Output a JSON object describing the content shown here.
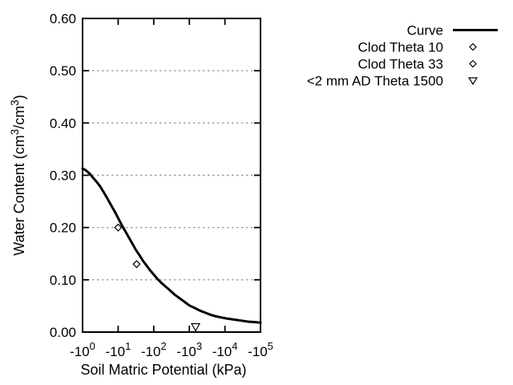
{
  "colors": {
    "background": "#ffffff",
    "foreground": "#000000",
    "grid": "#9e9e9e",
    "curve": "#000000",
    "marker_fill": "#ffffff"
  },
  "chart_data": {
    "type": "line",
    "title": "",
    "xlabel": "Soil Matric Potential (kPa)",
    "ylabel": "Water Content (cm3/cm3)",
    "ylabel_parts": [
      {
        "t": "Water Content (cm"
      },
      {
        "t": "3",
        "sup": true
      },
      {
        "t": "/cm"
      },
      {
        "t": "3",
        "sup": true
      },
      {
        "t": ")"
      }
    ],
    "x_scale": "negative-log10",
    "xlim_decades": [
      0,
      5
    ],
    "ylim": [
      0,
      0.6
    ],
    "x_ticks": [
      {
        "base": "-10",
        "exp": "0",
        "decade": 0
      },
      {
        "base": "-10",
        "exp": "1",
        "decade": 1
      },
      {
        "base": "-10",
        "exp": "2",
        "decade": 2
      },
      {
        "base": "-10",
        "exp": "3",
        "decade": 3
      },
      {
        "base": "-10",
        "exp": "4",
        "decade": 4
      },
      {
        "base": "-10",
        "exp": "5",
        "decade": 5
      }
    ],
    "y_ticks": [
      {
        "label": "0.00",
        "value": 0.0
      },
      {
        "label": "0.10",
        "value": 0.1
      },
      {
        "label": "0.20",
        "value": 0.2
      },
      {
        "label": "0.30",
        "value": 0.3
      },
      {
        "label": "0.40",
        "value": 0.4
      },
      {
        "label": "0.50",
        "value": 0.5
      },
      {
        "label": "0.60",
        "value": 0.6
      }
    ],
    "grid_levels": [
      0.1,
      0.2,
      0.3,
      0.4,
      0.5
    ],
    "grid_on": true,
    "series": [
      {
        "name": "Curve",
        "kind": "line",
        "marker": "line",
        "curve_log10kpa_theta": [
          [
            0.0,
            0.313
          ],
          [
            0.1,
            0.309
          ],
          [
            0.2,
            0.303
          ],
          [
            0.3,
            0.295
          ],
          [
            0.4,
            0.287
          ],
          [
            0.5,
            0.278
          ],
          [
            0.6,
            0.267
          ],
          [
            0.7,
            0.255
          ],
          [
            0.8,
            0.243
          ],
          [
            0.9,
            0.231
          ],
          [
            1.0,
            0.218
          ],
          [
            1.1,
            0.205
          ],
          [
            1.2,
            0.193
          ],
          [
            1.3,
            0.181
          ],
          [
            1.4,
            0.169
          ],
          [
            1.5,
            0.157
          ],
          [
            1.6,
            0.147
          ],
          [
            1.7,
            0.136
          ],
          [
            1.8,
            0.127
          ],
          [
            1.9,
            0.118
          ],
          [
            2.0,
            0.11
          ],
          [
            2.1,
            0.102
          ],
          [
            2.2,
            0.095
          ],
          [
            2.3,
            0.089
          ],
          [
            2.4,
            0.083
          ],
          [
            2.5,
            0.077
          ],
          [
            2.6,
            0.071
          ],
          [
            2.7,
            0.066
          ],
          [
            2.8,
            0.061
          ],
          [
            2.9,
            0.056
          ],
          [
            3.0,
            0.051
          ],
          [
            3.15,
            0.046
          ],
          [
            3.3,
            0.041
          ],
          [
            3.45,
            0.037
          ],
          [
            3.6,
            0.033
          ],
          [
            3.75,
            0.03
          ],
          [
            3.9,
            0.028
          ],
          [
            4.05,
            0.026
          ],
          [
            4.25,
            0.024
          ],
          [
            4.45,
            0.022
          ],
          [
            4.65,
            0.02
          ],
          [
            4.85,
            0.019
          ],
          [
            5.0,
            0.018
          ]
        ]
      },
      {
        "name": "Clod Theta 10",
        "kind": "scatter",
        "marker": "diamond",
        "points": [
          {
            "kpa": 10,
            "theta": 0.2
          }
        ]
      },
      {
        "name": "Clod Theta 33",
        "kind": "scatter",
        "marker": "diamond",
        "points": [
          {
            "kpa": 33,
            "theta": 0.13
          }
        ]
      },
      {
        "name": "<2 mm AD Theta 1500",
        "kind": "scatter",
        "marker": "triangle-down",
        "points": [
          {
            "kpa": 1500,
            "theta": 0.01
          }
        ]
      }
    ],
    "legend": {
      "position": "top-right-outside",
      "entries": [
        {
          "label": "Curve",
          "marker": "line"
        },
        {
          "label": "Clod Theta 10",
          "marker": "diamond"
        },
        {
          "label": "Clod Theta 33",
          "marker": "diamond"
        },
        {
          "label": "<2 mm AD Theta 1500",
          "marker": "triangle-down"
        }
      ]
    }
  }
}
